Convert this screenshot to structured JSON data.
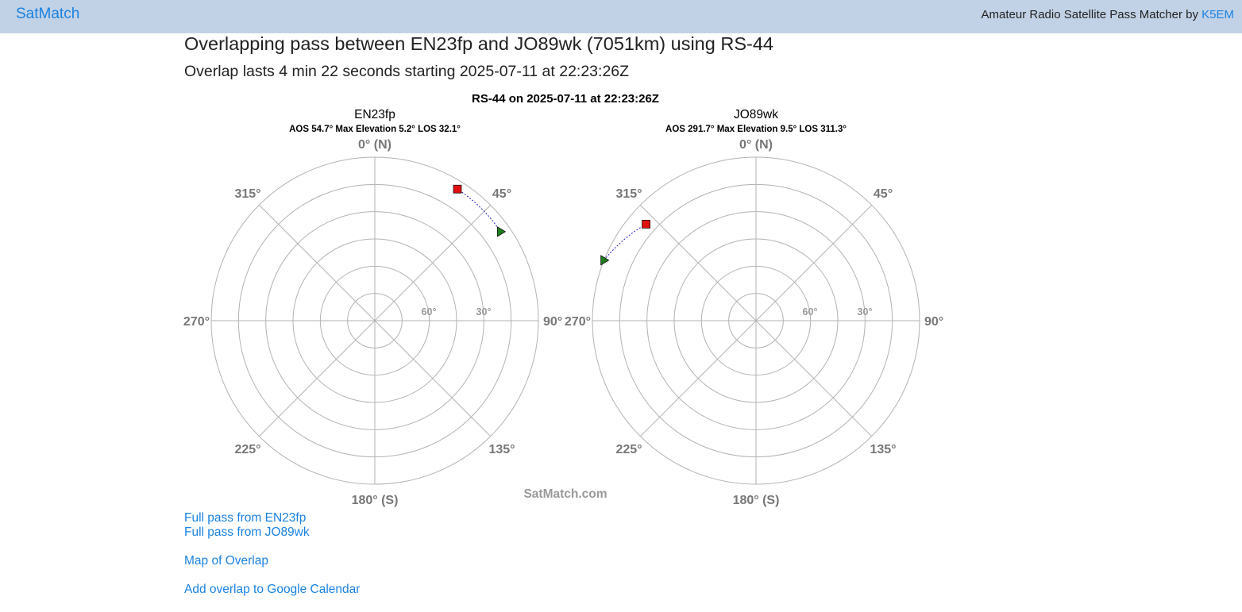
{
  "navbar": {
    "brand": "SatMatch",
    "tagline_prefix": "Amateur Radio Satellite Pass Matcher by ",
    "tagline_link": "K5EM"
  },
  "heading": "Overlapping pass between EN23fp and JO89wk (7051km) using RS-44",
  "subheading": "Overlap lasts 4 min 22 seconds starting 2025-07-11 at 22:23:26Z",
  "figure": {
    "title": "RS-44 on 2025-07-11 at 22:23:26Z",
    "watermark": "SatMatch.com",
    "direction_labels": [
      "0° (N)",
      "45°",
      "90°",
      "135°",
      "180° (S)",
      "225°",
      "270°",
      "315°"
    ],
    "elevation_labels": [
      "60°",
      "30°"
    ],
    "colors": {
      "grid": "#b3b3b3",
      "label": "#777777",
      "start_marker": "#1e7d1e",
      "end_marker": "#e01010",
      "track": "#2020c0"
    },
    "plots": [
      {
        "name": "EN23fp",
        "subtitle": "AOS 54.7° Max Elevation 5.2° LOS 32.1°",
        "track": {
          "start": {
            "az": 54.7,
            "el": 5.2
          },
          "end": {
            "az": 32.1,
            "el": 4.5
          }
        }
      },
      {
        "name": "JO89wk",
        "subtitle": "AOS 291.7° Max Elevation 9.5° LOS 311.3°",
        "track": {
          "start": {
            "az": 291.7,
            "el": 0.0
          },
          "end": {
            "az": 311.3,
            "el": 9.5
          }
        }
      }
    ]
  },
  "links": {
    "full_pass_1": "Full pass from EN23fp",
    "full_pass_2": "Full pass from JO89wk",
    "map": "Map of Overlap",
    "calendar": "Add overlap to Google Calendar"
  }
}
